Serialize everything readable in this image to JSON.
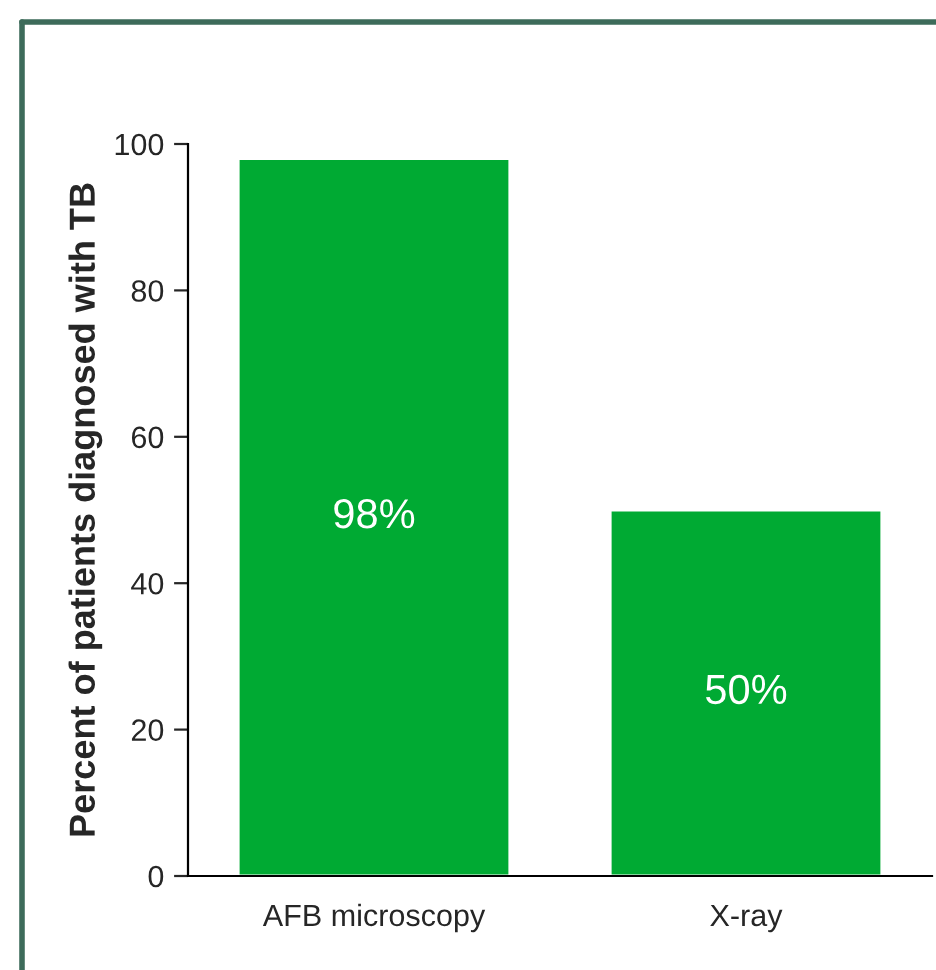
{
  "chart_data": {
    "type": "bar",
    "ylabel": "Percent of patients diagnosed with TB",
    "categories": [
      "AFB microscopy",
      "X-ray"
    ],
    "values": [
      98,
      50
    ],
    "color": "#00aa33",
    "value_labels": [
      "98%",
      "50%"
    ],
    "ylim": [
      0,
      100
    ],
    "yticks": [
      0,
      20,
      40,
      60,
      80,
      100
    ],
    "grid": false
  }
}
